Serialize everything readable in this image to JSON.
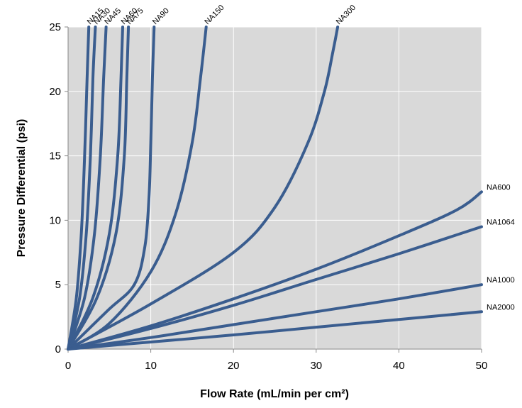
{
  "chart_data": {
    "type": "line",
    "xlabel": "Flow Rate (mL/min per cm²)",
    "ylabel": "Pressure Differential (psi)",
    "xlim": [
      0,
      50
    ],
    "ylim": [
      0,
      25
    ],
    "xticks": [
      0,
      10,
      20,
      30,
      40,
      50
    ],
    "yticks": [
      0,
      5,
      10,
      15,
      20,
      25
    ],
    "grid": true,
    "plot_background": "#d9d9d9",
    "grid_color": "#ffffff",
    "line_color": "#3a5d8f",
    "series": [
      {
        "name": "NA15",
        "points": [
          [
            0,
            0
          ],
          [
            1,
            4
          ],
          [
            1.6,
            9
          ],
          [
            2.0,
            15
          ],
          [
            2.3,
            21
          ],
          [
            2.5,
            25
          ]
        ]
      },
      {
        "name": "NA30",
        "points": [
          [
            0,
            0
          ],
          [
            1.4,
            4
          ],
          [
            2.2,
            9
          ],
          [
            2.7,
            15
          ],
          [
            3.0,
            21
          ],
          [
            3.3,
            25
          ]
        ]
      },
      {
        "name": "NA45",
        "points": [
          [
            0,
            0
          ],
          [
            2,
            4
          ],
          [
            3.2,
            9
          ],
          [
            3.9,
            15
          ],
          [
            4.3,
            21
          ],
          [
            4.6,
            25
          ]
        ]
      },
      {
        "name": "NA60",
        "points": [
          [
            0,
            0
          ],
          [
            3,
            4
          ],
          [
            5,
            9
          ],
          [
            6,
            15
          ],
          [
            6.4,
            21
          ],
          [
            6.6,
            25
          ]
        ]
      },
      {
        "name": "NA75",
        "points": [
          [
            0,
            0
          ],
          [
            3.5,
            4
          ],
          [
            5.8,
            9
          ],
          [
            6.8,
            15
          ],
          [
            7.1,
            21
          ],
          [
            7.3,
            25
          ]
        ]
      },
      {
        "name": "NA90",
        "points": [
          [
            0,
            0
          ],
          [
            4.8,
            3
          ],
          [
            8,
            5
          ],
          [
            9.3,
            8
          ],
          [
            9.8,
            12
          ],
          [
            10,
            16
          ],
          [
            10.2,
            21
          ],
          [
            10.4,
            25
          ]
        ]
      },
      {
        "name": "NA150",
        "points": [
          [
            0,
            0
          ],
          [
            5,
            2
          ],
          [
            10,
            6
          ],
          [
            13,
            10.5
          ],
          [
            15,
            16
          ],
          [
            16,
            21
          ],
          [
            16.7,
            25
          ]
        ]
      },
      {
        "name": "NA300",
        "points": [
          [
            0,
            0
          ],
          [
            10,
            3.5
          ],
          [
            20,
            7.5
          ],
          [
            25,
            11
          ],
          [
            29,
            16
          ],
          [
            31,
            20
          ],
          [
            32,
            23
          ],
          [
            32.6,
            25
          ]
        ]
      },
      {
        "name": "NA600",
        "points": [
          [
            0,
            0
          ],
          [
            10,
            1.8
          ],
          [
            20,
            3.9
          ],
          [
            30,
            6.2
          ],
          [
            40,
            8.8
          ],
          [
            47,
            10.8
          ],
          [
            50,
            12.2
          ]
        ]
      },
      {
        "name": "NA1064",
        "points": [
          [
            0,
            0
          ],
          [
            10,
            1.6
          ],
          [
            20,
            3.4
          ],
          [
            30,
            5.4
          ],
          [
            40,
            7.4
          ],
          [
            50,
            9.5
          ]
        ]
      },
      {
        "name": "NA1000",
        "points": [
          [
            0,
            0
          ],
          [
            10,
            0.9
          ],
          [
            20,
            1.9
          ],
          [
            30,
            2.9
          ],
          [
            40,
            3.9
          ],
          [
            50,
            5.0
          ]
        ]
      },
      {
        "name": "NA2000",
        "points": [
          [
            0,
            0
          ],
          [
            10,
            0.55
          ],
          [
            20,
            1.1
          ],
          [
            30,
            1.7
          ],
          [
            40,
            2.3
          ],
          [
            50,
            2.9
          ]
        ]
      }
    ]
  }
}
